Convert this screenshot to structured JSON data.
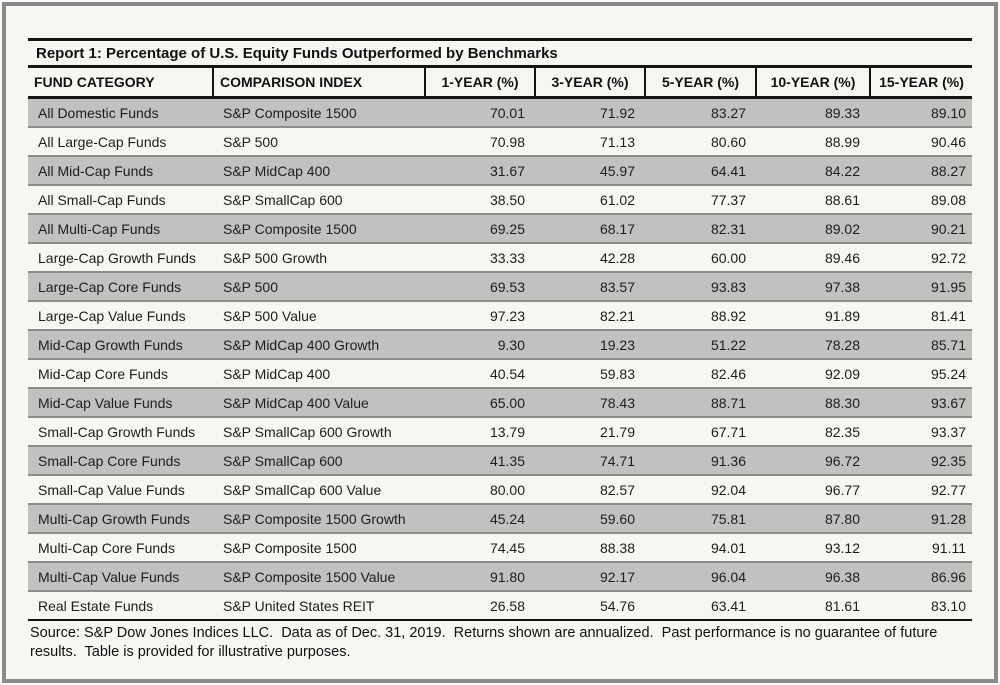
{
  "report": {
    "title": "Report 1: Percentage of U.S. Equity Funds Outperformed by Benchmarks",
    "columns": [
      "FUND CATEGORY",
      "COMPARISON INDEX",
      "1-YEAR (%)",
      "3-YEAR (%)",
      "5-YEAR (%)",
      "10-YEAR (%)",
      "15-YEAR (%)"
    ],
    "rows": [
      {
        "category": "All Domestic Funds",
        "index": "S&P Composite 1500",
        "values": [
          "70.01",
          "71.92",
          "83.27",
          "89.33",
          "89.10"
        ]
      },
      {
        "category": "All Large-Cap Funds",
        "index": "S&P 500",
        "values": [
          "70.98",
          "71.13",
          "80.60",
          "88.99",
          "90.46"
        ]
      },
      {
        "category": "All Mid-Cap Funds",
        "index": "S&P MidCap 400",
        "values": [
          "31.67",
          "45.97",
          "64.41",
          "84.22",
          "88.27"
        ]
      },
      {
        "category": "All Small-Cap Funds",
        "index": "S&P SmallCap 600",
        "values": [
          "38.50",
          "61.02",
          "77.37",
          "88.61",
          "89.08"
        ]
      },
      {
        "category": "All Multi-Cap Funds",
        "index": "S&P Composite 1500",
        "values": [
          "69.25",
          "68.17",
          "82.31",
          "89.02",
          "90.21"
        ]
      },
      {
        "category": "Large-Cap Growth Funds",
        "index": "S&P 500 Growth",
        "values": [
          "33.33",
          "42.28",
          "60.00",
          "89.46",
          "92.72"
        ]
      },
      {
        "category": "Large-Cap Core Funds",
        "index": "S&P 500",
        "values": [
          "69.53",
          "83.57",
          "93.83",
          "97.38",
          "91.95"
        ]
      },
      {
        "category": "Large-Cap Value Funds",
        "index": "S&P 500 Value",
        "values": [
          "97.23",
          "82.21",
          "88.92",
          "91.89",
          "81.41"
        ]
      },
      {
        "category": "Mid-Cap Growth Funds",
        "index": "S&P MidCap 400 Growth",
        "values": [
          "9.30",
          "19.23",
          "51.22",
          "78.28",
          "85.71"
        ]
      },
      {
        "category": "Mid-Cap Core Funds",
        "index": "S&P MidCap 400",
        "values": [
          "40.54",
          "59.83",
          "82.46",
          "92.09",
          "95.24"
        ]
      },
      {
        "category": "Mid-Cap Value Funds",
        "index": "S&P MidCap 400 Value",
        "values": [
          "65.00",
          "78.43",
          "88.71",
          "88.30",
          "93.67"
        ]
      },
      {
        "category": "Small-Cap Growth Funds",
        "index": "S&P SmallCap 600 Growth",
        "values": [
          "13.79",
          "21.79",
          "67.71",
          "82.35",
          "93.37"
        ]
      },
      {
        "category": "Small-Cap Core Funds",
        "index": "S&P SmallCap 600",
        "values": [
          "41.35",
          "74.71",
          "91.36",
          "96.72",
          "92.35"
        ]
      },
      {
        "category": "Small-Cap Value Funds",
        "index": "S&P SmallCap 600 Value",
        "values": [
          "80.00",
          "82.57",
          "92.04",
          "96.77",
          "92.77"
        ]
      },
      {
        "category": "Multi-Cap Growth Funds",
        "index": "S&P Composite 1500 Growth",
        "values": [
          "45.24",
          "59.60",
          "75.81",
          "87.80",
          "91.28"
        ]
      },
      {
        "category": "Multi-Cap Core Funds",
        "index": "S&P Composite 1500",
        "values": [
          "74.45",
          "88.38",
          "94.01",
          "93.12",
          "91.11"
        ]
      },
      {
        "category": "Multi-Cap Value Funds",
        "index": "S&P Composite 1500 Value",
        "values": [
          "91.80",
          "92.17",
          "96.04",
          "96.38",
          "86.96"
        ]
      },
      {
        "category": "Real Estate Funds",
        "index": "S&P United States REIT",
        "values": [
          "26.58",
          "54.76",
          "63.41",
          "81.61",
          "83.10"
        ]
      }
    ],
    "source_lines": [
      "Source: S&P Dow Jones Indices LLC.  Data as of Dec. 31, 2019.  Returns shown are annualized.  Past performance is no guarantee of future",
      "results.  Table is provided for illustrative purposes."
    ],
    "colors": {
      "shaded_row": "#c3c1bf",
      "shaded_row_border": "#8d8b89",
      "rule": "#151515",
      "frame_border": "#8a8a8a",
      "page_bg": "#f7f6f3"
    }
  }
}
